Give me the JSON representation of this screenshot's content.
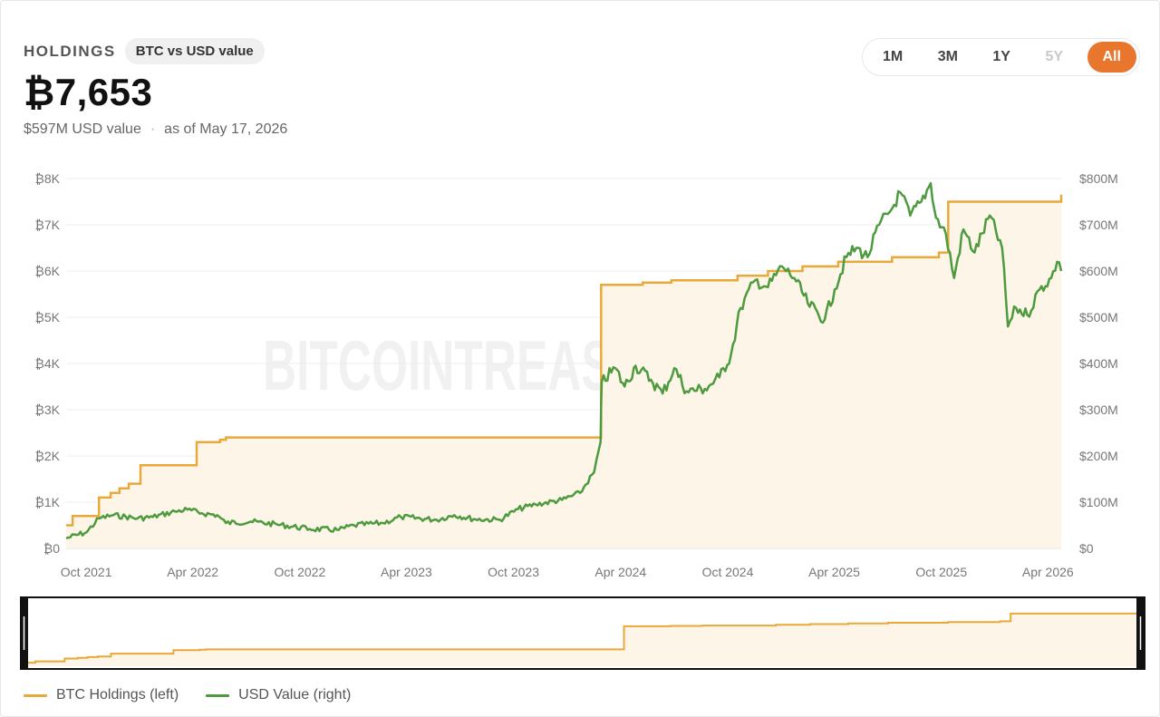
{
  "header": {
    "label": "HOLDINGS",
    "toggle_label": "BTC vs USD value",
    "value": "₿7,653",
    "usd_value": "$597M USD value",
    "separator": "·",
    "as_of": "as of May 17, 2026"
  },
  "ranges": [
    {
      "label": "1M",
      "state": "normal"
    },
    {
      "label": "3M",
      "state": "normal"
    },
    {
      "label": "1Y",
      "state": "normal"
    },
    {
      "label": "5Y",
      "state": "disabled"
    },
    {
      "label": "All",
      "state": "active"
    }
  ],
  "watermark": "BITCOINTREASURIES.NET",
  "colors": {
    "btc_line": "#e8a93a",
    "btc_fill": "#fdf5e8",
    "usd_line": "#4e9a3f",
    "active_range": "#e8762c"
  },
  "chart_data": {
    "type": "line",
    "x_type": "date",
    "xlim": [
      "2021-09-20",
      "2026-05-17"
    ],
    "x_ticks": [
      {
        "date": "2021-10-01",
        "label": "Oct 2021"
      },
      {
        "date": "2022-04-01",
        "label": "Apr 2022"
      },
      {
        "date": "2022-10-01",
        "label": "Oct 2022"
      },
      {
        "date": "2023-04-01",
        "label": "Apr 2023"
      },
      {
        "date": "2023-10-01",
        "label": "Oct 2023"
      },
      {
        "date": "2024-04-01",
        "label": "Apr 2024"
      },
      {
        "date": "2024-10-01",
        "label": "Oct 2024"
      },
      {
        "date": "2025-04-01",
        "label": "Apr 2025"
      },
      {
        "date": "2025-10-01",
        "label": "Oct 2025"
      },
      {
        "date": "2026-04-01",
        "label": "Apr 2026"
      }
    ],
    "y_left": {
      "lim": [
        0,
        8000
      ],
      "ticks": [
        {
          "v": 0,
          "label": "₿0"
        },
        {
          "v": 1000,
          "label": "₿1K"
        },
        {
          "v": 2000,
          "label": "₿2K"
        },
        {
          "v": 3000,
          "label": "₿3K"
        },
        {
          "v": 4000,
          "label": "₿4K"
        },
        {
          "v": 5000,
          "label": "₿5K"
        },
        {
          "v": 6000,
          "label": "₿6K"
        },
        {
          "v": 7000,
          "label": "₿7K"
        },
        {
          "v": 8000,
          "label": "₿8K"
        }
      ]
    },
    "y_right": {
      "lim": [
        0,
        800
      ],
      "ticks": [
        {
          "v": 0,
          "label": "$0"
        },
        {
          "v": 100,
          "label": "$100M"
        },
        {
          "v": 200,
          "label": "$200M"
        },
        {
          "v": 300,
          "label": "$300M"
        },
        {
          "v": 400,
          "label": "$400M"
        },
        {
          "v": 500,
          "label": "$500M"
        },
        {
          "v": 600,
          "label": "$600M"
        },
        {
          "v": 700,
          "label": "$700M"
        },
        {
          "v": 800,
          "label": "$800M"
        }
      ]
    },
    "grid": true,
    "legend_position": "bottom-left",
    "series": [
      {
        "name": "BTC Holdings (left)",
        "axis": "left",
        "step": true,
        "points": [
          [
            "2021-09-20",
            500
          ],
          [
            "2021-10-01",
            700
          ],
          [
            "2021-11-15",
            1100
          ],
          [
            "2021-12-05",
            1200
          ],
          [
            "2021-12-20",
            1300
          ],
          [
            "2022-01-05",
            1400
          ],
          [
            "2022-01-25",
            1800
          ],
          [
            "2022-05-01",
            2300
          ],
          [
            "2022-06-10",
            2350
          ],
          [
            "2022-06-20",
            2400
          ],
          [
            "2024-03-21",
            2400
          ],
          [
            "2024-03-22",
            5700
          ],
          [
            "2024-06-01",
            5750
          ],
          [
            "2024-07-20",
            5800
          ],
          [
            "2024-11-10",
            5900
          ],
          [
            "2025-01-01",
            6000
          ],
          [
            "2025-03-01",
            6100
          ],
          [
            "2025-05-01",
            6200
          ],
          [
            "2025-08-01",
            6300
          ],
          [
            "2025-10-20",
            6400
          ],
          [
            "2025-11-05",
            7500
          ],
          [
            "2026-05-17",
            7653
          ]
        ]
      },
      {
        "name": "USD Value (right)",
        "axis": "right",
        "points": [
          [
            "2021-09-20",
            22
          ],
          [
            "2021-10-25",
            35
          ],
          [
            "2021-11-15",
            65
          ],
          [
            "2021-12-10",
            72
          ],
          [
            "2022-01-20",
            65
          ],
          [
            "2022-02-15",
            68
          ],
          [
            "2022-03-25",
            80
          ],
          [
            "2022-04-15",
            84
          ],
          [
            "2022-05-10",
            76
          ],
          [
            "2022-06-05",
            72
          ],
          [
            "2022-06-20",
            55
          ],
          [
            "2022-08-01",
            58
          ],
          [
            "2022-09-15",
            52
          ],
          [
            "2022-11-10",
            42
          ],
          [
            "2022-12-30",
            40
          ],
          [
            "2023-01-25",
            50
          ],
          [
            "2023-03-15",
            55
          ],
          [
            "2023-04-15",
            68
          ],
          [
            "2023-06-15",
            62
          ],
          [
            "2023-07-15",
            72
          ],
          [
            "2023-08-20",
            63
          ],
          [
            "2023-10-01",
            62
          ],
          [
            "2023-11-01",
            85
          ],
          [
            "2023-12-01",
            95
          ],
          [
            "2024-01-15",
            105
          ],
          [
            "2024-02-15",
            120
          ],
          [
            "2024-03-10",
            165
          ],
          [
            "2024-03-21",
            230
          ],
          [
            "2024-03-23",
            360
          ],
          [
            "2024-04-15",
            390
          ],
          [
            "2024-05-01",
            350
          ],
          [
            "2024-05-20",
            395
          ],
          [
            "2024-06-15",
            365
          ],
          [
            "2024-07-05",
            335
          ],
          [
            "2024-07-25",
            390
          ],
          [
            "2024-08-15",
            340
          ],
          [
            "2024-09-15",
            345
          ],
          [
            "2024-10-10",
            370
          ],
          [
            "2024-10-30",
            420
          ],
          [
            "2024-11-15",
            520
          ],
          [
            "2024-12-10",
            580
          ],
          [
            "2025-01-01",
            565
          ],
          [
            "2025-01-25",
            610
          ],
          [
            "2025-02-15",
            585
          ],
          [
            "2025-03-10",
            530
          ],
          [
            "2025-04-08",
            495
          ],
          [
            "2025-04-25",
            560
          ],
          [
            "2025-05-15",
            630
          ],
          [
            "2025-06-01",
            650
          ],
          [
            "2025-06-20",
            630
          ],
          [
            "2025-07-10",
            700
          ],
          [
            "2025-08-01",
            735
          ],
          [
            "2025-08-15",
            770
          ],
          [
            "2025-09-01",
            720
          ],
          [
            "2025-09-20",
            750
          ],
          [
            "2025-10-06",
            790
          ],
          [
            "2025-10-15",
            715
          ],
          [
            "2025-11-01",
            680
          ],
          [
            "2025-11-15",
            585
          ],
          [
            "2025-12-01",
            690
          ],
          [
            "2025-12-20",
            640
          ],
          [
            "2026-01-15",
            720
          ],
          [
            "2026-02-05",
            650
          ],
          [
            "2026-02-15",
            480
          ],
          [
            "2026-03-01",
            520
          ],
          [
            "2026-03-20",
            505
          ],
          [
            "2026-04-10",
            560
          ],
          [
            "2026-04-30",
            585
          ],
          [
            "2026-05-10",
            620
          ],
          [
            "2026-05-17",
            600
          ]
        ]
      }
    ]
  }
}
